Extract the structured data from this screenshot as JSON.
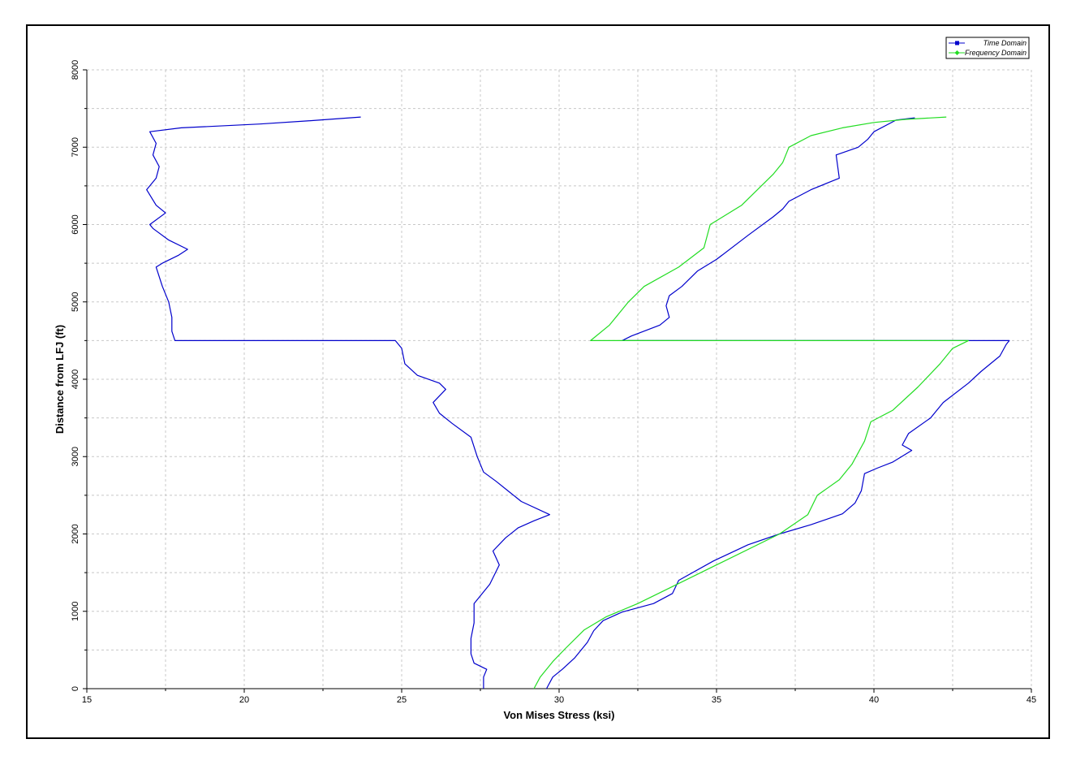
{
  "chart_data": {
    "type": "line",
    "title": "",
    "xlabel": "Von Mises Stress (ksi)",
    "ylabel": "Distance from LFJ (ft)",
    "xlim": [
      15,
      45
    ],
    "ylim": [
      0,
      8000
    ],
    "xticks": [
      15,
      20,
      25,
      30,
      35,
      40,
      45
    ],
    "yticks": [
      0,
      1000,
      2000,
      3000,
      4000,
      5000,
      6000,
      7000,
      8000
    ],
    "grid": true,
    "legend_position": "top-right",
    "series": [
      {
        "name": "Time Domain",
        "color": "#0000cc",
        "segments": [
          [
            [
              27.6,
              0
            ],
            [
              27.6,
              150
            ],
            [
              27.7,
              250
            ],
            [
              27.3,
              330
            ],
            [
              27.2,
              450
            ],
            [
              27.2,
              650
            ],
            [
              27.3,
              850
            ],
            [
              27.3,
              1100
            ],
            [
              27.8,
              1350
            ],
            [
              28.1,
              1600
            ],
            [
              27.9,
              1780
            ],
            [
              28.3,
              1950
            ],
            [
              28.7,
              2080
            ],
            [
              29.2,
              2170
            ],
            [
              29.7,
              2250
            ],
            [
              28.8,
              2420
            ],
            [
              28.4,
              2550
            ],
            [
              28.0,
              2680
            ],
            [
              27.6,
              2800
            ],
            [
              27.4,
              3000
            ],
            [
              27.2,
              3250
            ],
            [
              26.6,
              3430
            ],
            [
              26.2,
              3560
            ],
            [
              26.0,
              3700
            ],
            [
              26.4,
              3870
            ],
            [
              26.2,
              3950
            ],
            [
              25.5,
              4050
            ],
            [
              25.1,
              4200
            ],
            [
              25.0,
              4400
            ],
            [
              24.8,
              4500
            ],
            [
              17.8,
              4500
            ],
            [
              17.7,
              4620
            ],
            [
              17.7,
              4800
            ],
            [
              17.6,
              5000
            ],
            [
              17.4,
              5200
            ],
            [
              17.2,
              5450
            ],
            [
              17.4,
              5500
            ],
            [
              17.9,
              5600
            ],
            [
              18.2,
              5680
            ],
            [
              17.6,
              5800
            ],
            [
              17.1,
              5950
            ],
            [
              17.0,
              6000
            ],
            [
              17.5,
              6150
            ],
            [
              17.2,
              6250
            ],
            [
              16.9,
              6450
            ],
            [
              17.2,
              6600
            ],
            [
              17.3,
              6750
            ],
            [
              17.1,
              6900
            ],
            [
              17.2,
              7050
            ],
            [
              17.0,
              7200
            ],
            [
              18.0,
              7250
            ],
            [
              20.5,
              7300
            ],
            [
              22.0,
              7340
            ],
            [
              23.7,
              7390
            ]
          ],
          [
            [
              29.6,
              0
            ],
            [
              29.8,
              150
            ],
            [
              30.1,
              250
            ],
            [
              30.5,
              400
            ],
            [
              30.9,
              600
            ],
            [
              31.1,
              750
            ],
            [
              31.4,
              880
            ],
            [
              32.0,
              990
            ],
            [
              33.0,
              1100
            ],
            [
              33.6,
              1230
            ],
            [
              33.8,
              1400
            ],
            [
              34.9,
              1650
            ],
            [
              36.0,
              1860
            ],
            [
              37.0,
              2000
            ],
            [
              38.0,
              2120
            ],
            [
              39.0,
              2260
            ],
            [
              39.4,
              2400
            ],
            [
              39.6,
              2560
            ],
            [
              39.7,
              2780
            ],
            [
              40.1,
              2850
            ],
            [
              40.6,
              2930
            ],
            [
              41.2,
              3080
            ],
            [
              40.9,
              3150
            ],
            [
              41.1,
              3300
            ],
            [
              41.8,
              3500
            ],
            [
              42.2,
              3700
            ],
            [
              43.0,
              3950
            ],
            [
              43.4,
              4100
            ],
            [
              44.0,
              4300
            ],
            [
              44.2,
              4450
            ],
            [
              44.3,
              4500
            ],
            [
              32.0,
              4500
            ],
            [
              32.3,
              4560
            ],
            [
              33.2,
              4700
            ],
            [
              33.5,
              4800
            ],
            [
              33.4,
              4950
            ],
            [
              33.5,
              5080
            ],
            [
              33.9,
              5200
            ],
            [
              34.4,
              5400
            ],
            [
              35.0,
              5550
            ],
            [
              36.0,
              5860
            ],
            [
              36.8,
              6100
            ],
            [
              37.1,
              6200
            ],
            [
              37.3,
              6300
            ],
            [
              38.0,
              6450
            ],
            [
              38.6,
              6550
            ],
            [
              38.9,
              6600
            ],
            [
              38.8,
              6900
            ],
            [
              39.5,
              7000
            ],
            [
              39.8,
              7100
            ],
            [
              40.0,
              7200
            ],
            [
              40.7,
              7350
            ],
            [
              41.3,
              7380
            ]
          ]
        ]
      },
      {
        "name": "Frequency Domain",
        "color": "#22dd22",
        "segments": [
          [
            [
              29.2,
              0
            ],
            [
              29.4,
              150
            ],
            [
              29.8,
              350
            ],
            [
              30.2,
              520
            ],
            [
              30.8,
              760
            ],
            [
              31.5,
              930
            ],
            [
              32.5,
              1100
            ],
            [
              33.5,
              1300
            ],
            [
              35.0,
              1600
            ],
            [
              37.0,
              2000
            ],
            [
              37.9,
              2250
            ],
            [
              38.2,
              2500
            ],
            [
              38.9,
              2700
            ],
            [
              39.3,
              2900
            ],
            [
              39.7,
              3200
            ],
            [
              39.9,
              3450
            ],
            [
              40.6,
              3600
            ],
            [
              41.4,
              3900
            ],
            [
              42.1,
              4200
            ],
            [
              42.5,
              4400
            ],
            [
              43.0,
              4500
            ],
            [
              31.0,
              4500
            ],
            [
              31.6,
              4700
            ],
            [
              32.2,
              5000
            ],
            [
              32.7,
              5200
            ],
            [
              33.8,
              5450
            ],
            [
              34.6,
              5700
            ],
            [
              34.8,
              6000
            ],
            [
              35.8,
              6250
            ],
            [
              36.8,
              6650
            ],
            [
              37.1,
              6800
            ],
            [
              37.3,
              7000
            ],
            [
              38.0,
              7150
            ],
            [
              39.0,
              7250
            ],
            [
              40.0,
              7320
            ],
            [
              41.0,
              7360
            ],
            [
              42.3,
              7390
            ]
          ]
        ]
      }
    ]
  }
}
